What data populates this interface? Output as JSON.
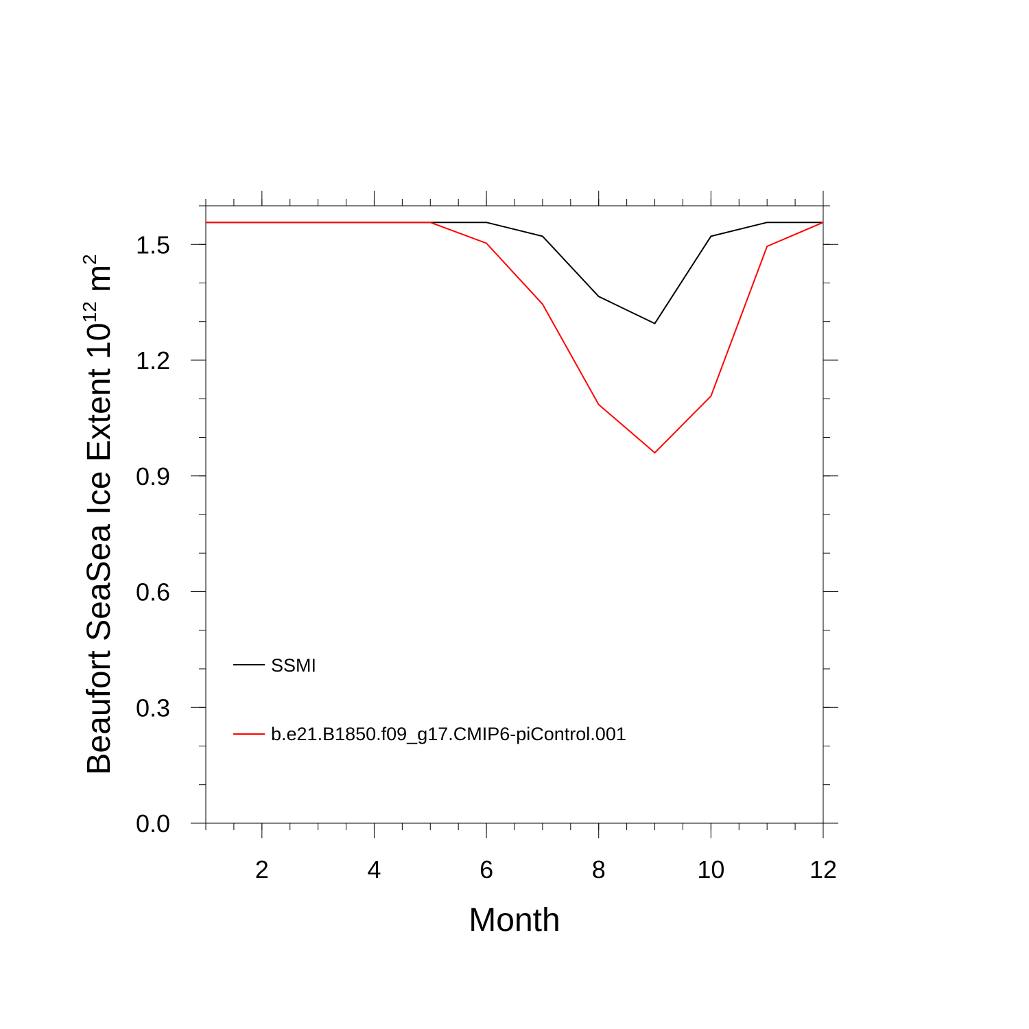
{
  "chart_data": {
    "type": "line",
    "xlabel": "Month",
    "ylabel": {
      "prefix": "Beaufort SeaSea Ice Extent 10",
      "exponent": "12",
      "middle": " m",
      "unit_exponent": "2"
    },
    "xlim": [
      1,
      12
    ],
    "ylim": [
      0,
      1.6
    ],
    "x_ticks": [
      2,
      4,
      6,
      8,
      10,
      12
    ],
    "x_tick_labels": [
      "2",
      "4",
      "6",
      "8",
      "10",
      "12"
    ],
    "y_ticks": [
      0.0,
      0.3,
      0.6,
      0.9,
      1.2,
      1.5
    ],
    "y_tick_labels": [
      "0.0",
      "0.3",
      "0.6",
      "0.9",
      "1.2",
      "1.5"
    ],
    "x": [
      1,
      2,
      3,
      4,
      5,
      6,
      7,
      8,
      9,
      10,
      11,
      12
    ],
    "series": [
      {
        "name": "SSMI",
        "color": "#000000",
        "values": [
          1.557,
          1.557,
          1.557,
          1.557,
          1.557,
          1.557,
          1.521,
          1.365,
          1.295,
          1.521,
          1.557,
          1.557
        ]
      },
      {
        "name": "b.e21.B1850.f09_g17.CMIP6-piControl.001",
        "color": "#ff0000",
        "values": [
          1.557,
          1.557,
          1.557,
          1.557,
          1.557,
          1.503,
          1.345,
          1.085,
          0.96,
          1.107,
          1.495,
          1.557
        ]
      }
    ],
    "grid": false,
    "legend_position": "lower-left"
  }
}
